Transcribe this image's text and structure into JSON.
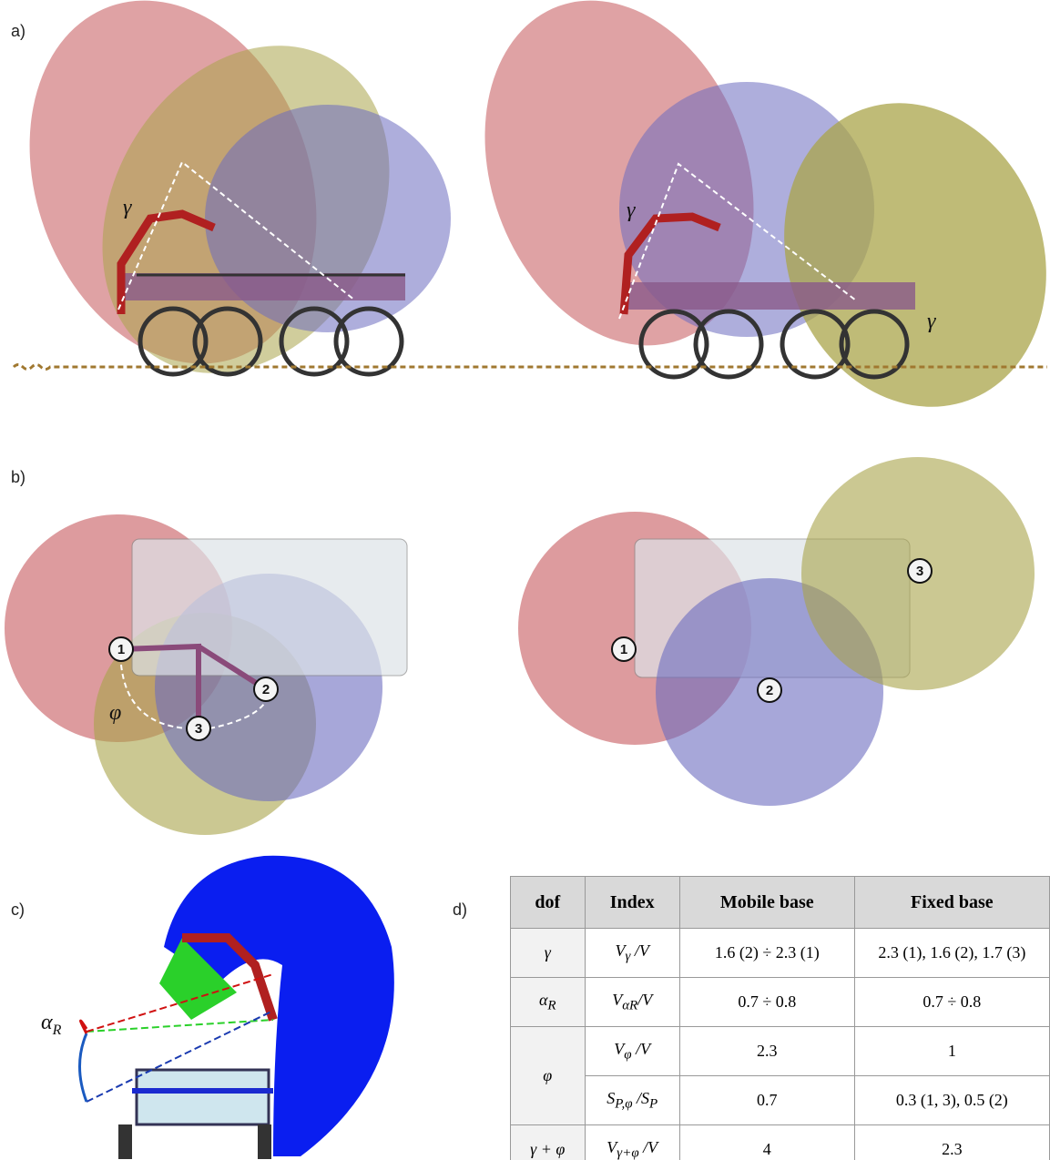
{
  "panels": {
    "a": "a)",
    "b": "b)",
    "c": "c)",
    "d": "d)"
  },
  "symbols": {
    "gamma": "γ",
    "phi": "φ",
    "alpha": "α",
    "alpha_sub": "R"
  },
  "markers": [
    "1",
    "2",
    "3"
  ],
  "table": {
    "header": [
      "dof",
      "Index",
      "Mobile base",
      "Fixed base"
    ],
    "rows": [
      [
        "γ",
        [
          {
            "t": "V"
          },
          {
            "sub": "γ"
          },
          {
            "t": " /V"
          }
        ],
        "1.6 (2) ÷ 2.3 (1)",
        "2.3 (1), 1.6 (2), 1.7 (3)"
      ],
      [
        [
          {
            "t": "α"
          },
          {
            "sub": "R"
          }
        ],
        [
          {
            "t": "V"
          },
          {
            "sub": "αR"
          },
          {
            "t": "/V"
          }
        ],
        "0.7 ÷ 0.8",
        "0.7 ÷ 0.8"
      ],
      [
        "φ",
        [
          {
            "t": "V"
          },
          {
            "sub": "φ"
          },
          {
            "t": " /V"
          }
        ],
        "2.3",
        "1"
      ],
      [
        [
          {
            "t": "S"
          },
          {
            "sub": "P,φ"
          },
          {
            "t": " /S"
          },
          {
            "sub": "P"
          }
        ],
        "0.7",
        "0.3 (1, 3), 0.5 (2)"
      ],
      [
        "γ + φ",
        [
          {
            "t": "V"
          },
          {
            "sub": "γ+φ"
          },
          {
            "t": " /V"
          }
        ],
        "4",
        "2.3"
      ]
    ]
  }
}
